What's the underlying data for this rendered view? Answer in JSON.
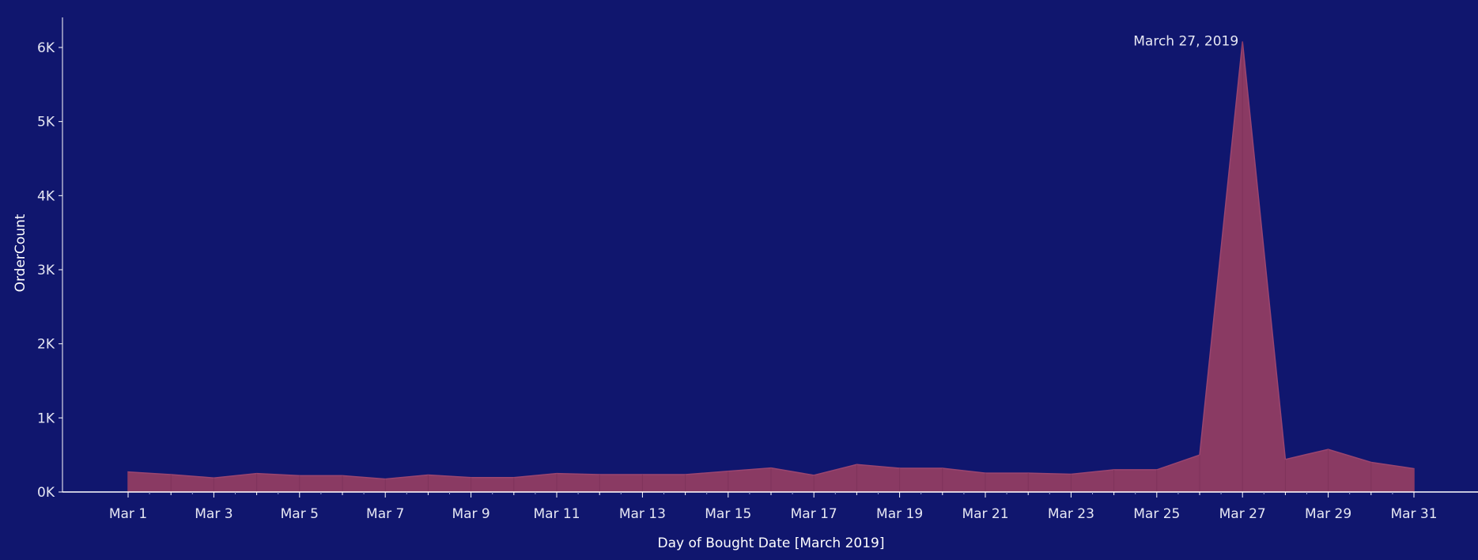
{
  "chart_data": {
    "type": "area",
    "xlabel": "Day of Bought Date [March 2019]",
    "ylabel": "OrderCount",
    "x": [
      "Mar 1",
      "Mar 2",
      "Mar 3",
      "Mar 4",
      "Mar 5",
      "Mar 6",
      "Mar 7",
      "Mar 8",
      "Mar 9",
      "Mar 10",
      "Mar 11",
      "Mar 12",
      "Mar 13",
      "Mar 14",
      "Mar 15",
      "Mar 16",
      "Mar 17",
      "Mar 18",
      "Mar 19",
      "Mar 20",
      "Mar 21",
      "Mar 22",
      "Mar 23",
      "Mar 24",
      "Mar 25",
      "Mar 26",
      "Mar 27",
      "Mar 28",
      "Mar 29",
      "Mar 30",
      "Mar 31"
    ],
    "x_tick_labels": [
      "Mar 1",
      "Mar 3",
      "Mar 5",
      "Mar 7",
      "Mar 9",
      "Mar 11",
      "Mar 13",
      "Mar 15",
      "Mar 17",
      "Mar 19",
      "Mar 21",
      "Mar 23",
      "Mar 25",
      "Mar 27",
      "Mar 29",
      "Mar 31"
    ],
    "series": [
      {
        "values": [
          270,
          235,
          190,
          250,
          220,
          220,
          175,
          230,
          195,
          195,
          250,
          235,
          235,
          235,
          280,
          325,
          225,
          370,
          320,
          320,
          255,
          255,
          240,
          300,
          300,
          500,
          6080,
          440,
          575,
          400,
          315
        ]
      }
    ],
    "ylim": [
      0,
      6400
    ],
    "y_ticks": [
      0,
      1000,
      2000,
      3000,
      4000,
      5000,
      6000
    ],
    "y_tick_labels": [
      "0K",
      "1K",
      "2K",
      "3K",
      "4K",
      "5K",
      "6K"
    ],
    "annotation": {
      "text": "March 27, 2019",
      "index": 26
    },
    "colors": {
      "background": "#10166e",
      "fill": "#8a3a63",
      "stroke": "#9a4570",
      "axis": "#ffffff",
      "text": "#e6e7f3"
    },
    "grid": false
  }
}
